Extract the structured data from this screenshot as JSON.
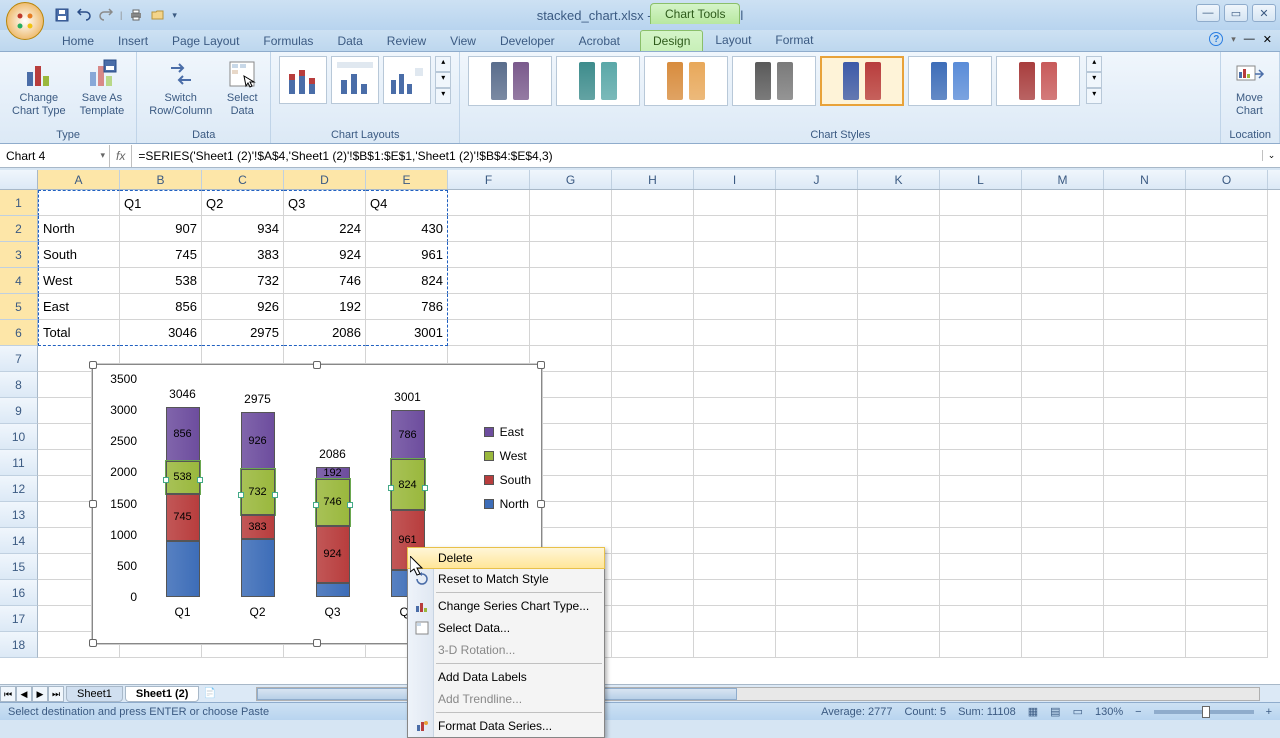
{
  "title": "stacked_chart.xlsx - Microsoft Excel",
  "chart_tools_label": "Chart Tools",
  "tabs": [
    "Home",
    "Insert",
    "Page Layout",
    "Formulas",
    "Data",
    "Review",
    "View",
    "Developer",
    "Acrobat"
  ],
  "chart_tabs": [
    "Design",
    "Layout",
    "Format"
  ],
  "active_chart_tab": "Design",
  "ribbon": {
    "groups": {
      "type": {
        "label": "Type",
        "change_type": "Change\nChart Type",
        "save_template": "Save As\nTemplate"
      },
      "data": {
        "label": "Data",
        "switch": "Switch\nRow/Column",
        "select": "Select\nData"
      },
      "layouts": {
        "label": "Chart Layouts"
      },
      "styles": {
        "label": "Chart Styles"
      },
      "location": {
        "label": "Location",
        "move": "Move\nChart"
      }
    }
  },
  "name_box": "Chart 4",
  "formula": "=SERIES('Sheet1 (2)'!$A$4,'Sheet1 (2)'!$B$1:$E$1,'Sheet1 (2)'!$B$4:$E$4,3)",
  "columns": [
    "A",
    "B",
    "C",
    "D",
    "E",
    "F",
    "G",
    "H",
    "I",
    "J",
    "K",
    "L",
    "M",
    "N",
    "O"
  ],
  "table": {
    "headers": [
      "",
      "Q1",
      "Q2",
      "Q3",
      "Q4"
    ],
    "rows": [
      [
        "North",
        907,
        934,
        224,
        430
      ],
      [
        "South",
        745,
        383,
        924,
        961
      ],
      [
        "West",
        538,
        732,
        746,
        824
      ],
      [
        "East",
        856,
        926,
        192,
        786
      ],
      [
        "Total",
        3046,
        2975,
        2086,
        3001
      ]
    ]
  },
  "chart": {
    "y_max": 3500,
    "y_step": 500,
    "y_ticks": [
      0,
      500,
      1000,
      1500,
      2000,
      2500,
      3000,
      3500
    ],
    "categories": [
      "Q1",
      "Q2",
      "Q3",
      "Q4"
    ],
    "series": [
      {
        "name": "North",
        "color": "#3d6db8",
        "values": [
          907,
          934,
          224,
          430
        ]
      },
      {
        "name": "South",
        "color": "#b83d3d",
        "values": [
          745,
          383,
          924,
          961
        ]
      },
      {
        "name": "West",
        "color": "#9ab83d",
        "values": [
          538,
          732,
          746,
          824
        ]
      },
      {
        "name": "East",
        "color": "#6d4d9e",
        "values": [
          856,
          926,
          192,
          786
        ]
      }
    ],
    "totals": [
      3046,
      2975,
      2086,
      3001
    ],
    "legend_order": [
      "East",
      "West",
      "South",
      "North"
    ]
  },
  "ctx_menu": [
    {
      "label": "Delete",
      "hover": true
    },
    {
      "label": "Reset to Match Style",
      "icon": "reset"
    },
    {
      "sep": true
    },
    {
      "label": "Change Series Chart Type...",
      "icon": "chart"
    },
    {
      "label": "Select Data...",
      "icon": "select"
    },
    {
      "label": "3-D Rotation...",
      "disabled": true
    },
    {
      "sep": true
    },
    {
      "label": "Add Data Labels"
    },
    {
      "label": "Add Trendline...",
      "disabled": true
    },
    {
      "sep": true
    },
    {
      "label": "Format Data Series...",
      "icon": "format"
    }
  ],
  "sheet_tabs": [
    "Sheet1",
    "Sheet1 (2)"
  ],
  "active_sheet": 1,
  "status_text": "Select destination and press ENTER or choose Paste",
  "status_right": {
    "average": "Average: 2777",
    "count": "Count: 5",
    "sum": "Sum: 11108",
    "zoom": "130%"
  },
  "style_palettes": [
    [
      "#5a6d8c",
      "#7a5a8c"
    ],
    [
      "#3d8c8c",
      "#5aa8a8"
    ],
    [
      "#d88c3d",
      "#e8a85a"
    ],
    [
      "#5a5a5a",
      "#7a7a7a"
    ],
    [
      "#3d5aa8",
      "#b83d3d"
    ],
    [
      "#3d6db8",
      "#5a8cd8"
    ],
    [
      "#a83d3d",
      "#c85a5a"
    ]
  ],
  "selected_style": 4
}
